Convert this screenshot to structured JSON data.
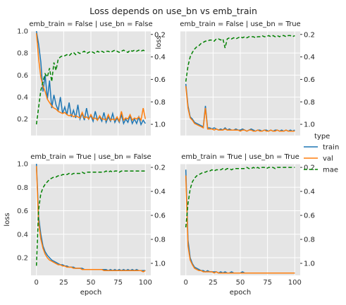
{
  "figure": {
    "title": "Loss depends on use_bn vs emb_train",
    "legend_title": "type",
    "legend_items": [
      {
        "label": "train",
        "color": "#1f77b4",
        "dash": false
      },
      {
        "label": "val",
        "color": "#ff7f0e",
        "dash": false
      },
      {
        "label": "mae",
        "color": "#008000",
        "dash": true
      }
    ],
    "ylabel": "loss",
    "ylabel_right": "loss",
    "xlabel": "epoch"
  },
  "colors": {
    "train": "#1f77b4",
    "val": "#ff7f0e",
    "mae": "#008000",
    "panel_bg": "#e5e5e5",
    "grid": "#ffffff"
  },
  "chart_data": [
    {
      "type": "line",
      "title": "emb_train = False | use_bn = False",
      "xlabel": "",
      "ylabel": "loss",
      "ylabel_right": "loss",
      "xlim": [
        -5,
        105
      ],
      "ylim": [
        0.05,
        1.0
      ],
      "y2lim": [
        0.17,
        1.1
      ],
      "y2_inverted": true,
      "xticks": [
        0,
        25,
        50,
        75,
        100
      ],
      "yticks": [
        0.2,
        0.4,
        0.6,
        0.8,
        1.0
      ],
      "y2ticks": [
        0.2,
        0.4,
        0.6,
        0.8,
        1.0
      ],
      "grid": true,
      "x": [
        0,
        2,
        4,
        6,
        8,
        10,
        12,
        14,
        16,
        18,
        20,
        22,
        24,
        26,
        28,
        30,
        32,
        34,
        36,
        38,
        40,
        42,
        44,
        46,
        48,
        50,
        52,
        54,
        56,
        58,
        60,
        62,
        64,
        66,
        68,
        70,
        72,
        74,
        76,
        78,
        80,
        82,
        84,
        86,
        88,
        90,
        92,
        94,
        96,
        98,
        100
      ],
      "series": [
        {
          "name": "train",
          "axis": "left",
          "values": [
            1.0,
            0.88,
            0.72,
            0.45,
            0.6,
            0.38,
            0.55,
            0.3,
            0.42,
            0.33,
            0.28,
            0.4,
            0.25,
            0.31,
            0.24,
            0.35,
            0.22,
            0.28,
            0.21,
            0.33,
            0.2,
            0.25,
            0.19,
            0.3,
            0.2,
            0.23,
            0.18,
            0.27,
            0.19,
            0.22,
            0.18,
            0.26,
            0.17,
            0.22,
            0.18,
            0.25,
            0.17,
            0.21,
            0.17,
            0.24,
            0.16,
            0.2,
            0.17,
            0.23,
            0.16,
            0.2,
            0.16,
            0.22,
            0.15,
            0.19,
            0.16
          ]
        },
        {
          "name": "val",
          "axis": "left",
          "values": [
            0.98,
            0.75,
            0.58,
            0.5,
            0.45,
            0.38,
            0.35,
            0.32,
            0.3,
            0.29,
            0.27,
            0.26,
            0.25,
            0.26,
            0.24,
            0.23,
            0.24,
            0.22,
            0.23,
            0.22,
            0.21,
            0.26,
            0.21,
            0.22,
            0.2,
            0.24,
            0.2,
            0.21,
            0.19,
            0.23,
            0.2,
            0.2,
            0.19,
            0.24,
            0.19,
            0.2,
            0.19,
            0.22,
            0.18,
            0.27,
            0.19,
            0.21,
            0.2,
            0.24,
            0.19,
            0.21,
            0.2,
            0.22,
            0.19,
            0.3,
            0.2
          ]
        },
        {
          "name": "mae",
          "axis": "right",
          "values": [
            1.0,
            0.85,
            0.7,
            0.62,
            0.55,
            0.58,
            0.5,
            0.62,
            0.45,
            0.52,
            0.42,
            0.4,
            0.39,
            0.39,
            0.38,
            0.39,
            0.37,
            0.36,
            0.38,
            0.36,
            0.37,
            0.36,
            0.35,
            0.37,
            0.36,
            0.35,
            0.36,
            0.37,
            0.35,
            0.36,
            0.35,
            0.36,
            0.35,
            0.35,
            0.36,
            0.35,
            0.34,
            0.35,
            0.36,
            0.35,
            0.34,
            0.35,
            0.36,
            0.34,
            0.35,
            0.34,
            0.35,
            0.34,
            0.35,
            0.34,
            0.35
          ]
        }
      ]
    },
    {
      "type": "line",
      "title": "emb_train = False | use_bn = True",
      "xlabel": "",
      "ylabel": "",
      "ylabel_right": "",
      "xlim": [
        -5,
        105
      ],
      "ylim": [
        0.05,
        1.0
      ],
      "y2lim": [
        0.17,
        1.1
      ],
      "y2_inverted": true,
      "xticks": [
        0,
        25,
        50,
        75,
        100
      ],
      "yticks": [
        0.2,
        0.4,
        0.6,
        0.8,
        1.0
      ],
      "y2ticks": [
        0.2,
        0.4,
        0.6,
        0.8,
        1.0
      ],
      "grid": true,
      "x": [
        0,
        2,
        4,
        6,
        8,
        10,
        12,
        14,
        16,
        18,
        20,
        22,
        24,
        26,
        28,
        30,
        32,
        34,
        36,
        38,
        40,
        42,
        44,
        46,
        48,
        50,
        52,
        54,
        56,
        58,
        60,
        62,
        64,
        66,
        68,
        70,
        72,
        74,
        76,
        78,
        80,
        82,
        84,
        86,
        88,
        90,
        92,
        94,
        96,
        98,
        100
      ],
      "series": [
        {
          "name": "train",
          "axis": "left",
          "values": [
            0.52,
            0.32,
            0.22,
            0.2,
            0.17,
            0.16,
            0.15,
            0.14,
            0.13,
            0.32,
            0.12,
            0.12,
            0.11,
            0.12,
            0.11,
            0.1,
            0.11,
            0.1,
            0.12,
            0.1,
            0.11,
            0.1,
            0.1,
            0.11,
            0.1,
            0.1,
            0.11,
            0.1,
            0.09,
            0.1,
            0.11,
            0.1,
            0.09,
            0.1,
            0.1,
            0.09,
            0.1,
            0.1,
            0.09,
            0.1,
            0.09,
            0.1,
            0.1,
            0.09,
            0.1,
            0.09,
            0.1,
            0.09,
            0.1,
            0.09,
            0.1
          ]
        },
        {
          "name": "val",
          "axis": "left",
          "values": [
            0.5,
            0.3,
            0.21,
            0.19,
            0.16,
            0.15,
            0.14,
            0.13,
            0.12,
            0.3,
            0.11,
            0.11,
            0.11,
            0.1,
            0.11,
            0.1,
            0.1,
            0.1,
            0.11,
            0.1,
            0.1,
            0.1,
            0.1,
            0.1,
            0.1,
            0.09,
            0.1,
            0.1,
            0.09,
            0.1,
            0.1,
            0.09,
            0.09,
            0.1,
            0.09,
            0.09,
            0.1,
            0.09,
            0.09,
            0.1,
            0.09,
            0.09,
            0.1,
            0.09,
            0.09,
            0.09,
            0.1,
            0.09,
            0.09,
            0.09,
            0.09
          ]
        },
        {
          "name": "mae",
          "axis": "right",
          "values": [
            0.62,
            0.48,
            0.4,
            0.36,
            0.33,
            0.31,
            0.3,
            0.28,
            0.27,
            0.26,
            0.26,
            0.25,
            0.25,
            0.26,
            0.24,
            0.24,
            0.25,
            0.24,
            0.32,
            0.24,
            0.23,
            0.24,
            0.23,
            0.24,
            0.23,
            0.22,
            0.23,
            0.22,
            0.23,
            0.22,
            0.22,
            0.22,
            0.23,
            0.22,
            0.22,
            0.21,
            0.22,
            0.22,
            0.21,
            0.22,
            0.21,
            0.22,
            0.21,
            0.22,
            0.21,
            0.21,
            0.22,
            0.21,
            0.21,
            0.22,
            0.21
          ]
        }
      ]
    },
    {
      "type": "line",
      "title": "emb_train = True | use_bn = False",
      "xlabel": "epoch",
      "ylabel": "loss",
      "ylabel_right": "",
      "xlim": [
        -5,
        105
      ],
      "ylim": [
        0.05,
        1.0
      ],
      "y2lim": [
        0.17,
        1.1
      ],
      "y2_inverted": true,
      "xticks": [
        0,
        25,
        50,
        75,
        100
      ],
      "yticks": [
        0.2,
        0.4,
        0.6,
        0.8,
        1.0
      ],
      "y2ticks": [
        0.2,
        0.4,
        0.6,
        0.8,
        1.0
      ],
      "grid": true,
      "x": [
        0,
        2,
        4,
        6,
        8,
        10,
        12,
        14,
        16,
        18,
        20,
        22,
        24,
        26,
        28,
        30,
        32,
        34,
        36,
        38,
        40,
        42,
        44,
        46,
        48,
        50,
        52,
        54,
        56,
        58,
        60,
        62,
        64,
        66,
        68,
        70,
        72,
        74,
        76,
        78,
        80,
        82,
        84,
        86,
        88,
        90,
        92,
        94,
        96,
        98,
        100
      ],
      "series": [
        {
          "name": "train",
          "axis": "left",
          "values": [
            1.0,
            0.55,
            0.4,
            0.3,
            0.25,
            0.22,
            0.2,
            0.18,
            0.17,
            0.16,
            0.15,
            0.14,
            0.14,
            0.13,
            0.13,
            0.12,
            0.12,
            0.12,
            0.11,
            0.11,
            0.11,
            0.11,
            0.1,
            0.1,
            0.1,
            0.1,
            0.1,
            0.1,
            0.1,
            0.1,
            0.1,
            0.1,
            0.1,
            0.09,
            0.1,
            0.09,
            0.1,
            0.09,
            0.1,
            0.09,
            0.1,
            0.09,
            0.1,
            0.09,
            0.1,
            0.09,
            0.1,
            0.09,
            0.09,
            0.09,
            0.09
          ]
        },
        {
          "name": "val",
          "axis": "left",
          "values": [
            0.98,
            0.5,
            0.36,
            0.28,
            0.23,
            0.2,
            0.18,
            0.17,
            0.16,
            0.15,
            0.14,
            0.14,
            0.13,
            0.13,
            0.12,
            0.12,
            0.12,
            0.11,
            0.11,
            0.11,
            0.11,
            0.1,
            0.1,
            0.1,
            0.1,
            0.1,
            0.1,
            0.1,
            0.1,
            0.1,
            0.1,
            0.09,
            0.09,
            0.09,
            0.09,
            0.09,
            0.09,
            0.09,
            0.09,
            0.09,
            0.09,
            0.09,
            0.09,
            0.09,
            0.09,
            0.09,
            0.09,
            0.09,
            0.09,
            0.08,
            0.09
          ]
        },
        {
          "name": "mae",
          "axis": "right",
          "values": [
            1.02,
            0.55,
            0.42,
            0.37,
            0.34,
            0.32,
            0.3,
            0.29,
            0.28,
            0.28,
            0.27,
            0.27,
            0.26,
            0.26,
            0.26,
            0.25,
            0.26,
            0.25,
            0.25,
            0.25,
            0.25,
            0.24,
            0.25,
            0.24,
            0.24,
            0.24,
            0.24,
            0.24,
            0.24,
            0.24,
            0.24,
            0.24,
            0.23,
            0.24,
            0.23,
            0.24,
            0.23,
            0.23,
            0.24,
            0.23,
            0.23,
            0.23,
            0.23,
            0.23,
            0.23,
            0.23,
            0.23,
            0.23,
            0.23,
            0.23,
            0.23
          ]
        }
      ]
    },
    {
      "type": "line",
      "title": "emb_train = True | use_bn = True",
      "xlabel": "epoch",
      "ylabel": "",
      "ylabel_right": "",
      "xlim": [
        -5,
        105
      ],
      "ylim": [
        0.05,
        1.0
      ],
      "y2lim": [
        0.17,
        1.1
      ],
      "y2_inverted": true,
      "xticks": [
        0,
        25,
        50,
        75,
        100
      ],
      "yticks": [
        0.2,
        0.4,
        0.6,
        0.8,
        1.0
      ],
      "y2ticks": [
        0.2,
        0.4,
        0.6,
        0.8,
        1.0
      ],
      "grid": true,
      "x": [
        0,
        2,
        4,
        6,
        8,
        10,
        12,
        14,
        16,
        18,
        20,
        22,
        24,
        26,
        28,
        30,
        32,
        34,
        36,
        38,
        40,
        42,
        44,
        46,
        48,
        50,
        52,
        54,
        56,
        58,
        60,
        62,
        64,
        66,
        68,
        70,
        72,
        74,
        76,
        78,
        80,
        82,
        84,
        86,
        88,
        90,
        92,
        94,
        96,
        98,
        100
      ],
      "series": [
        {
          "name": "train",
          "axis": "left",
          "values": [
            0.95,
            0.35,
            0.2,
            0.15,
            0.12,
            0.11,
            0.1,
            0.09,
            0.09,
            0.08,
            0.09,
            0.08,
            0.08,
            0.08,
            0.08,
            0.07,
            0.08,
            0.07,
            0.08,
            0.07,
            0.07,
            0.08,
            0.07,
            0.07,
            0.07,
            0.07,
            0.08,
            0.07,
            0.07,
            0.07,
            0.07,
            0.07,
            0.07,
            0.07,
            0.07,
            0.07,
            0.07,
            0.07,
            0.07,
            0.07,
            0.07,
            0.07,
            0.07,
            0.07,
            0.07,
            0.07,
            0.07,
            0.07,
            0.07,
            0.07,
            0.07
          ]
        },
        {
          "name": "val",
          "axis": "left",
          "values": [
            0.9,
            0.3,
            0.18,
            0.14,
            0.11,
            0.1,
            0.09,
            0.09,
            0.08,
            0.08,
            0.08,
            0.08,
            0.08,
            0.07,
            0.08,
            0.07,
            0.07,
            0.07,
            0.07,
            0.07,
            0.07,
            0.07,
            0.07,
            0.07,
            0.07,
            0.07,
            0.07,
            0.07,
            0.07,
            0.07,
            0.07,
            0.07,
            0.07,
            0.07,
            0.07,
            0.07,
            0.07,
            0.07,
            0.07,
            0.07,
            0.07,
            0.07,
            0.07,
            0.07,
            0.07,
            0.07,
            0.07,
            0.07,
            0.07,
            0.07,
            0.07
          ]
        },
        {
          "name": "mae",
          "axis": "right",
          "values": [
            0.7,
            0.5,
            0.38,
            0.32,
            0.29,
            0.27,
            0.26,
            0.25,
            0.24,
            0.24,
            0.23,
            0.23,
            0.22,
            0.23,
            0.22,
            0.22,
            0.22,
            0.21,
            0.22,
            0.21,
            0.21,
            0.22,
            0.21,
            0.21,
            0.21,
            0.21,
            0.21,
            0.21,
            0.2,
            0.21,
            0.21,
            0.2,
            0.21,
            0.2,
            0.21,
            0.2,
            0.2,
            0.21,
            0.2,
            0.2,
            0.2,
            0.21,
            0.2,
            0.2,
            0.2,
            0.2,
            0.2,
            0.2,
            0.2,
            0.2,
            0.2
          ]
        }
      ]
    }
  ]
}
